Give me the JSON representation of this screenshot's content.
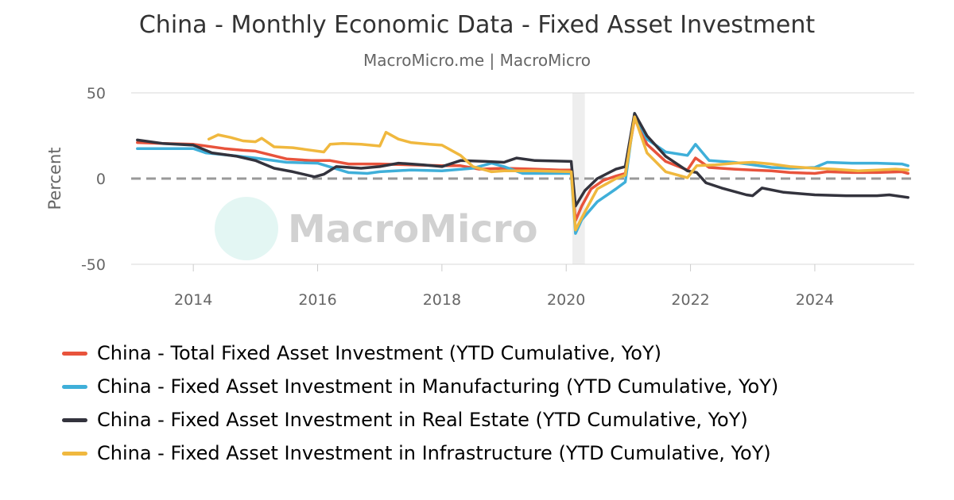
{
  "title": "China - Monthly Economic Data - Fixed Asset Investment",
  "subtitle": "MacroMicro.me | MacroMicro",
  "watermark": "MacroMicro",
  "chart_data": {
    "type": "line",
    "ylabel": "Percent",
    "ylim": [
      -50,
      50
    ],
    "xlim": [
      2013.0,
      2025.6
    ],
    "y_ticks": [
      50,
      0,
      -50
    ],
    "x_ticks": [
      2014,
      2016,
      2018,
      2020,
      2022,
      2024
    ],
    "grid": "horizontal",
    "zero_line": "dashed",
    "shaded_period": [
      2020.1,
      2020.3
    ],
    "legend_position": "bottom",
    "series": [
      {
        "name": "China - Total Fixed Asset Investment (YTD Cumulative, YoY)",
        "color": "#e8533c",
        "points": [
          [
            2013.1,
            21
          ],
          [
            2013.5,
            20.5
          ],
          [
            2014.0,
            20
          ],
          [
            2014.5,
            17.5
          ],
          [
            2014.8,
            16.5
          ],
          [
            2015.0,
            16
          ],
          [
            2015.5,
            11.5
          ],
          [
            2015.9,
            10.5
          ],
          [
            2016.2,
            10.5
          ],
          [
            2016.5,
            8.5
          ],
          [
            2017.0,
            8.5
          ],
          [
            2017.5,
            8
          ],
          [
            2018.0,
            7.5
          ],
          [
            2018.3,
            7.5
          ],
          [
            2018.6,
            5.5
          ],
          [
            2019.0,
            6
          ],
          [
            2019.5,
            5.5
          ],
          [
            2019.9,
            5
          ],
          [
            2020.08,
            5
          ],
          [
            2020.15,
            -24.5
          ],
          [
            2020.25,
            -16
          ],
          [
            2020.4,
            -6
          ],
          [
            2020.6,
            -1
          ],
          [
            2020.8,
            1.5
          ],
          [
            2020.95,
            3
          ],
          [
            2021.1,
            35
          ],
          [
            2021.3,
            20
          ],
          [
            2021.6,
            10
          ],
          [
            2021.95,
            5
          ],
          [
            2022.08,
            12
          ],
          [
            2022.3,
            6.5
          ],
          [
            2022.7,
            5.5
          ],
          [
            2023.0,
            5
          ],
          [
            2023.3,
            4.5
          ],
          [
            2023.6,
            3.5
          ],
          [
            2024.0,
            3
          ],
          [
            2024.2,
            4
          ],
          [
            2024.6,
            3.5
          ],
          [
            2025.0,
            3.5
          ],
          [
            2025.4,
            4
          ],
          [
            2025.5,
            3
          ]
        ]
      },
      {
        "name": "China - Fixed Asset Investment in Manufacturing (YTD Cumulative, YoY)",
        "color": "#3fafd9",
        "points": [
          [
            2013.1,
            17.5
          ],
          [
            2013.5,
            17.5
          ],
          [
            2014.0,
            17.5
          ],
          [
            2014.2,
            15
          ],
          [
            2014.6,
            13.5
          ],
          [
            2015.0,
            12
          ],
          [
            2015.5,
            9.5
          ],
          [
            2016.0,
            9
          ],
          [
            2016.5,
            3.5
          ],
          [
            2016.8,
            3
          ],
          [
            2017.0,
            4
          ],
          [
            2017.5,
            5
          ],
          [
            2018.0,
            4.5
          ],
          [
            2018.5,
            6
          ],
          [
            2018.8,
            9
          ],
          [
            2019.0,
            7
          ],
          [
            2019.3,
            3
          ],
          [
            2019.6,
            3
          ],
          [
            2020.08,
            3
          ],
          [
            2020.15,
            -32
          ],
          [
            2020.25,
            -24
          ],
          [
            2020.5,
            -13.5
          ],
          [
            2020.8,
            -6
          ],
          [
            2020.95,
            -2
          ],
          [
            2021.1,
            38
          ],
          [
            2021.3,
            23
          ],
          [
            2021.6,
            15.5
          ],
          [
            2021.95,
            13.5
          ],
          [
            2022.08,
            20
          ],
          [
            2022.3,
            10.5
          ],
          [
            2022.7,
            9.5
          ],
          [
            2023.0,
            8
          ],
          [
            2023.3,
            6.5
          ],
          [
            2023.6,
            6
          ],
          [
            2024.0,
            6.5
          ],
          [
            2024.2,
            9.5
          ],
          [
            2024.6,
            9
          ],
          [
            2025.0,
            9
          ],
          [
            2025.4,
            8.5
          ],
          [
            2025.5,
            7.5
          ]
        ]
      },
      {
        "name": "China - Fixed Asset Investment in Real Estate (YTD Cumulative, YoY)",
        "color": "#33333d",
        "points": [
          [
            2013.1,
            22.5
          ],
          [
            2013.5,
            20.5
          ],
          [
            2014.0,
            19.5
          ],
          [
            2014.3,
            15
          ],
          [
            2014.7,
            13
          ],
          [
            2015.0,
            10.5
          ],
          [
            2015.3,
            6
          ],
          [
            2015.6,
            4
          ],
          [
            2015.95,
            1
          ],
          [
            2016.1,
            2.5
          ],
          [
            2016.3,
            7
          ],
          [
            2016.7,
            6
          ],
          [
            2017.0,
            7
          ],
          [
            2017.3,
            9
          ],
          [
            2017.7,
            8
          ],
          [
            2018.0,
            7
          ],
          [
            2018.3,
            10.5
          ],
          [
            2018.7,
            10
          ],
          [
            2019.0,
            9.5
          ],
          [
            2019.2,
            12
          ],
          [
            2019.5,
            10.5
          ],
          [
            2020.08,
            10
          ],
          [
            2020.15,
            -16
          ],
          [
            2020.3,
            -7
          ],
          [
            2020.5,
            0
          ],
          [
            2020.8,
            5.5
          ],
          [
            2020.95,
            7
          ],
          [
            2021.1,
            38
          ],
          [
            2021.3,
            25
          ],
          [
            2021.6,
            13
          ],
          [
            2021.95,
            4.5
          ],
          [
            2022.1,
            3.5
          ],
          [
            2022.25,
            -2.5
          ],
          [
            2022.5,
            -5.5
          ],
          [
            2022.9,
            -9.5
          ],
          [
            2023.0,
            -10
          ],
          [
            2023.15,
            -5.5
          ],
          [
            2023.5,
            -8
          ],
          [
            2024.0,
            -9.5
          ],
          [
            2024.5,
            -10
          ],
          [
            2025.0,
            -10
          ],
          [
            2025.2,
            -9.5
          ],
          [
            2025.5,
            -11
          ]
        ]
      },
      {
        "name": "China - Fixed Asset Investment in Infrastructure (YTD Cumulative, YoY)",
        "color": "#f0b83e",
        "points": [
          [
            2014.25,
            23
          ],
          [
            2014.4,
            25.5
          ],
          [
            2014.6,
            24
          ],
          [
            2014.8,
            22
          ],
          [
            2015.0,
            21.5
          ],
          [
            2015.1,
            23.5
          ],
          [
            2015.3,
            18.5
          ],
          [
            2015.6,
            18
          ],
          [
            2015.8,
            17
          ],
          [
            2016.1,
            15.5
          ],
          [
            2016.2,
            20
          ],
          [
            2016.4,
            20.5
          ],
          [
            2016.7,
            20
          ],
          [
            2017.0,
            19
          ],
          [
            2017.1,
            27
          ],
          [
            2017.3,
            23
          ],
          [
            2017.5,
            21
          ],
          [
            2017.8,
            20
          ],
          [
            2018.0,
            19.5
          ],
          [
            2018.3,
            13.5
          ],
          [
            2018.5,
            7
          ],
          [
            2018.8,
            4
          ],
          [
            2019.0,
            4.5
          ],
          [
            2019.5,
            4.5
          ],
          [
            2020.08,
            4
          ],
          [
            2020.15,
            -30
          ],
          [
            2020.3,
            -19.5
          ],
          [
            2020.5,
            -6
          ],
          [
            2020.8,
            0
          ],
          [
            2020.95,
            2
          ],
          [
            2021.1,
            36
          ],
          [
            2021.3,
            15
          ],
          [
            2021.6,
            4
          ],
          [
            2021.95,
            0.5
          ],
          [
            2022.1,
            7.5
          ],
          [
            2022.4,
            8
          ],
          [
            2022.7,
            9
          ],
          [
            2023.0,
            9.5
          ],
          [
            2023.3,
            8.5
          ],
          [
            2023.6,
            7
          ],
          [
            2024.0,
            6
          ],
          [
            2024.3,
            5.5
          ],
          [
            2024.7,
            4.5
          ],
          [
            2025.0,
            5
          ],
          [
            2025.3,
            5.5
          ],
          [
            2025.5,
            5
          ]
        ]
      }
    ]
  }
}
